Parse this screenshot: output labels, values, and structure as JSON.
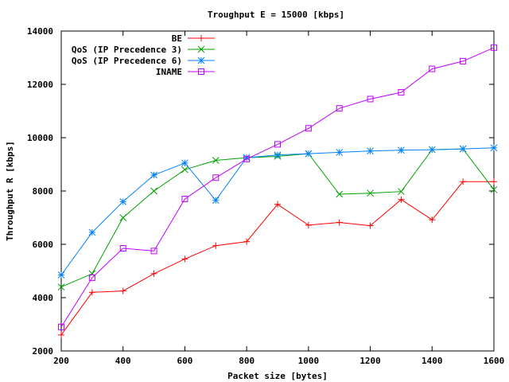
{
  "chart_data": {
    "type": "line",
    "title": "Troughput E = 15000 [kbps]",
    "xlabel": "Packet size [bytes]",
    "ylabel": "Throughput R [kbps]",
    "xlim": [
      200,
      1600
    ],
    "ylim": [
      2000,
      14000
    ],
    "xticks": [
      "200",
      "400",
      "600",
      "800",
      "1000",
      "1200",
      "1400",
      "1600"
    ],
    "yticks": [
      "2000",
      "4000",
      "6000",
      "8000",
      "10000",
      "12000",
      "14000"
    ],
    "grid": false,
    "legend_position": "top-left",
    "x": [
      200,
      300,
      400,
      500,
      600,
      700,
      800,
      900,
      1000,
      1100,
      1200,
      1300,
      1400,
      1500,
      1600
    ],
    "series": [
      {
        "name": "BE",
        "color": "#ff0000",
        "marker": "plus",
        "values": [
          2600,
          4200,
          4250,
          4900,
          5450,
          5950,
          6100,
          7500,
          6720,
          6820,
          6700,
          7680,
          6920,
          8350,
          8350
        ]
      },
      {
        "name": "QoS (IP Precedence 3)",
        "color": "#00a000",
        "marker": "cross",
        "values": [
          4400,
          4900,
          7000,
          8000,
          8800,
          9150,
          9250,
          9300,
          9400,
          7880,
          7920,
          7980,
          9550,
          9580,
          8050
        ]
      },
      {
        "name": "QoS (IP Precedence 6)",
        "color": "#0080ff",
        "marker": "star",
        "values": [
          4850,
          6450,
          7600,
          8600,
          9050,
          7650,
          9250,
          9350,
          9400,
          9450,
          9500,
          9530,
          9550,
          9580,
          9620
        ]
      },
      {
        "name": "INAME",
        "color": "#c000ff",
        "marker": "square",
        "values": [
          2900,
          4750,
          5850,
          5750,
          7700,
          8500,
          9200,
          9750,
          10350,
          11100,
          11450,
          11700,
          12580,
          12870,
          13380
        ]
      }
    ]
  }
}
